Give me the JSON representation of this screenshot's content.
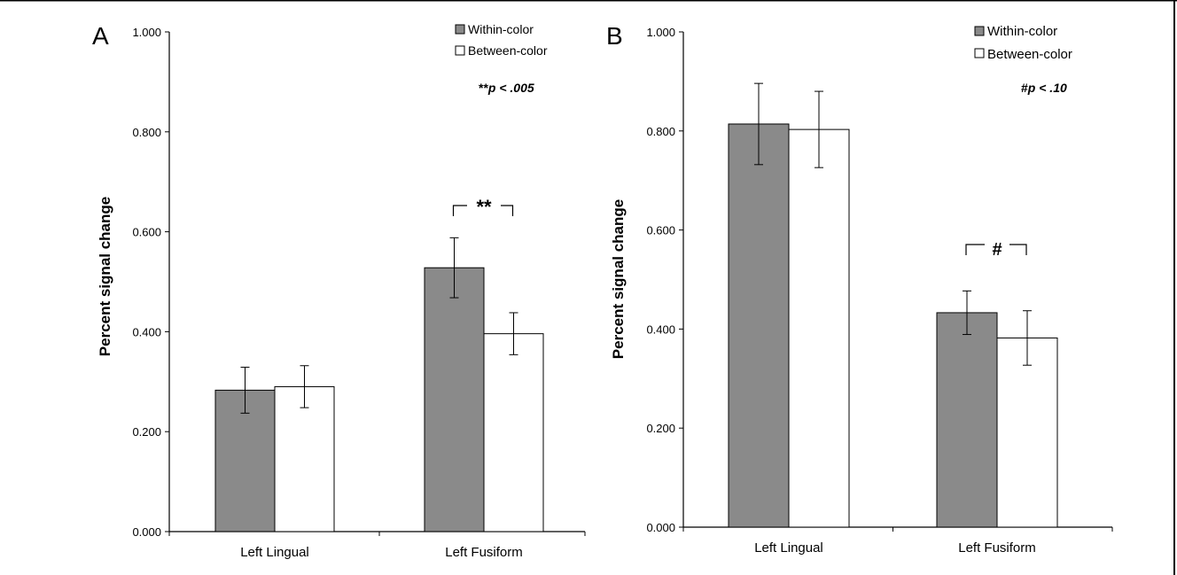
{
  "colors": {
    "within": "#8a8a8a",
    "between": "#ffffff",
    "axis": "#000000",
    "frame": "#000000"
  },
  "chart_data": [
    {
      "type": "bar",
      "panel_label": "A",
      "ylabel": "Percent signal change",
      "ylim": [
        0,
        1
      ],
      "yticks": [
        "0.000",
        "0.200",
        "0.400",
        "0.600",
        "0.800",
        "1.000"
      ],
      "categories": [
        "Left Lingual",
        "Left Fusiform"
      ],
      "series": [
        {
          "name": "Within-color",
          "values": [
            0.283,
            0.528
          ],
          "errors": [
            0.046,
            0.06
          ]
        },
        {
          "name": "Between-color",
          "values": [
            0.29,
            0.396
          ],
          "errors": [
            0.042,
            0.042
          ]
        }
      ],
      "legend": "top-right",
      "significance_note": {
        "marker": "**",
        "text": "p < .005"
      },
      "bracket": {
        "category_index": 1,
        "marker": "**"
      },
      "grid": false
    },
    {
      "type": "bar",
      "panel_label": "B",
      "ylabel": "Percent signal change",
      "ylim": [
        0,
        1
      ],
      "yticks": [
        "0.000",
        "0.200",
        "0.400",
        "0.600",
        "0.800",
        "1.000"
      ],
      "categories": [
        "Left Lingual",
        "Left Fusiform"
      ],
      "series": [
        {
          "name": "Within-color",
          "values": [
            0.814,
            0.433
          ],
          "errors": [
            0.082,
            0.044
          ]
        },
        {
          "name": "Between-color",
          "values": [
            0.803,
            0.382
          ],
          "errors": [
            0.077,
            0.055
          ]
        }
      ],
      "legend": "top-right",
      "significance_note": {
        "marker": "#",
        "text": "p < .10"
      },
      "bracket": {
        "category_index": 1,
        "marker": "#"
      },
      "grid": false
    }
  ]
}
